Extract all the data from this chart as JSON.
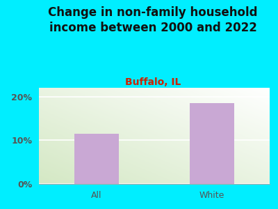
{
  "title": "Change in non-family household\nincome between 2000 and 2022",
  "subtitle": "Buffalo, IL",
  "categories": [
    "All",
    "White"
  ],
  "values": [
    11.5,
    18.5
  ],
  "bar_color": "#c9a8d4",
  "title_fontsize": 12,
  "subtitle_fontsize": 10,
  "subtitle_color": "#cc2200",
  "title_color": "#111111",
  "tick_label_color": "#555555",
  "background_outer": "#00eeff",
  "ylim": [
    0,
    22
  ],
  "yticks": [
    0,
    10,
    20
  ],
  "ytick_labels": [
    "0%",
    "10%",
    "20%"
  ],
  "bar_width": 0.38,
  "xlim": [
    -0.5,
    1.5
  ]
}
